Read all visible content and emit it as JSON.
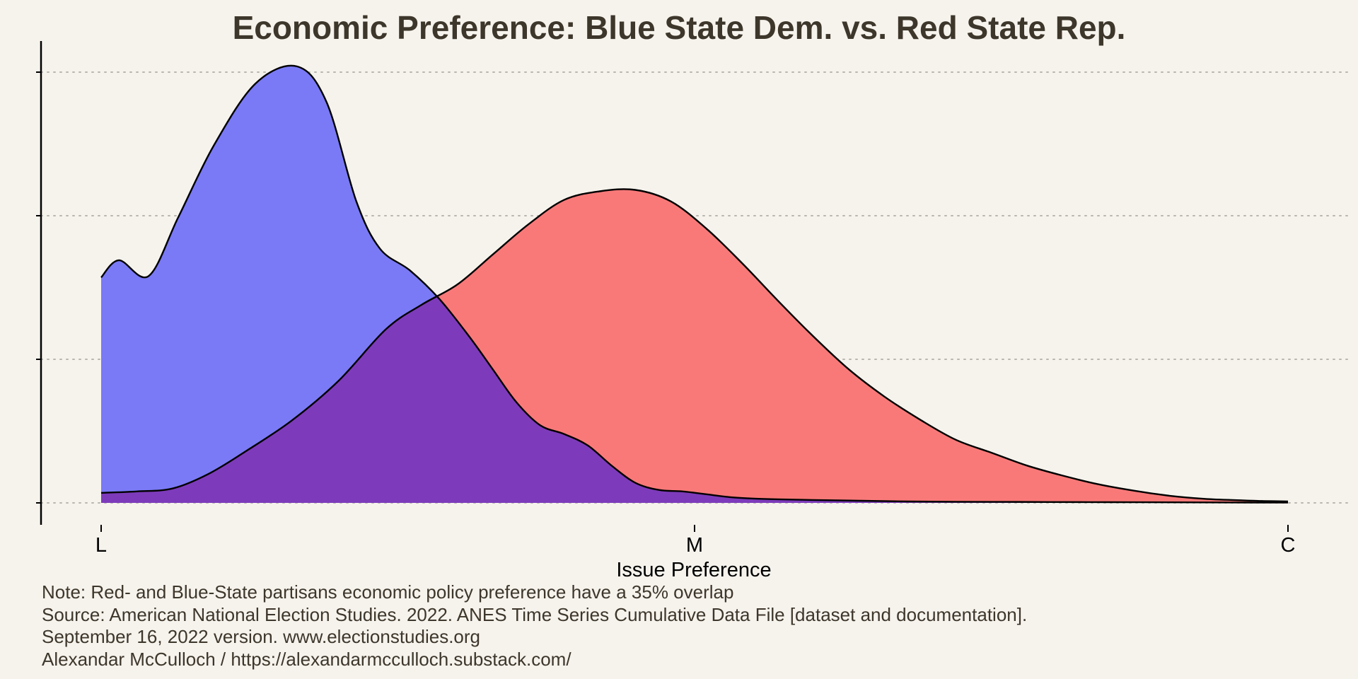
{
  "chart_data": {
    "type": "area",
    "title": "Economic Preference: Blue State Dem. vs. Red State Rep.",
    "xlabel": "Issue Preference",
    "ylabel": "",
    "x_ticks": [
      {
        "value": 0,
        "label": "L"
      },
      {
        "value": 0.5,
        "label": "M"
      },
      {
        "value": 1,
        "label": "C"
      }
    ],
    "y_ticks": [
      0,
      1,
      2,
      3
    ],
    "xlim": [
      -0.05,
      1.05
    ],
    "ylim": [
      -0.15,
      3.2
    ],
    "grid": {
      "horizontal": true,
      "vertical": false,
      "style": "dotted"
    },
    "legend": "none",
    "series": [
      {
        "color": "#7a7af6",
        "x": [
          0,
          0.015,
          0.04,
          0.065,
          0.095,
          0.13,
          0.165,
          0.19,
          0.215,
          0.235,
          0.26,
          0.285,
          0.31,
          0.33,
          0.35,
          0.37,
          0.39,
          0.41,
          0.43,
          0.45,
          0.47,
          0.49,
          0.51,
          0.53,
          0.55,
          0.57,
          0.6,
          0.64,
          0.68,
          0.72,
          0.76,
          0.8,
          0.85,
          0.9,
          0.95,
          1.0
        ],
        "y": [
          1.57,
          1.69,
          1.58,
          1.99,
          2.49,
          2.92,
          3.04,
          2.79,
          2.1,
          1.77,
          1.62,
          1.42,
          1.16,
          0.93,
          0.7,
          0.54,
          0.48,
          0.4,
          0.26,
          0.14,
          0.09,
          0.08,
          0.06,
          0.04,
          0.03,
          0.025,
          0.02,
          0.015,
          0.01,
          0.008,
          0.007,
          0.006,
          0.005,
          0.004,
          0.003,
          0.002
        ]
      },
      {
        "color": "#f97979",
        "x": [
          0,
          0.03,
          0.06,
          0.09,
          0.12,
          0.16,
          0.2,
          0.24,
          0.27,
          0.3,
          0.33,
          0.36,
          0.39,
          0.42,
          0.45,
          0.48,
          0.51,
          0.54,
          0.57,
          0.6,
          0.63,
          0.66,
          0.69,
          0.72,
          0.75,
          0.78,
          0.81,
          0.84,
          0.87,
          0.9,
          0.93,
          0.96,
          0.98,
          1.0
        ],
        "y": [
          0.07,
          0.08,
          0.1,
          0.2,
          0.35,
          0.57,
          0.85,
          1.21,
          1.38,
          1.52,
          1.73,
          1.94,
          2.11,
          2.17,
          2.18,
          2.1,
          1.91,
          1.67,
          1.41,
          1.16,
          0.93,
          0.74,
          0.58,
          0.44,
          0.35,
          0.26,
          0.19,
          0.13,
          0.085,
          0.05,
          0.028,
          0.018,
          0.013,
          0.01
        ]
      }
    ],
    "overlap_color": "#7d3bbb"
  },
  "caption": {
    "lines": [
      "Note: Red- and Blue-State partisans economic policy preference have a 35% overlap",
      "Source: American National Election Studies. 2022. ANES Time Series Cumulative Data File [dataset and documentation].",
      "September 16, 2022 version. www.electionstudies.org",
      "Alexandar McCulloch / https://alexandarmcculloch.substack.com/"
    ]
  }
}
